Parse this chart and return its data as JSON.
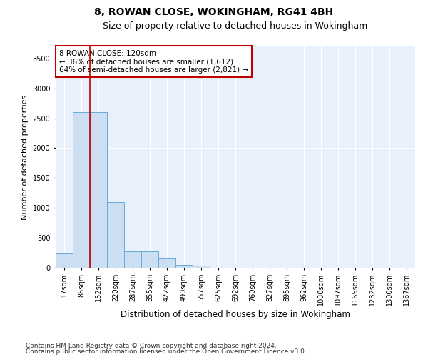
{
  "title1": "8, ROWAN CLOSE, WOKINGHAM, RG41 4BH",
  "title2": "Size of property relative to detached houses in Wokingham",
  "xlabel": "Distribution of detached houses by size in Wokingham",
  "ylabel": "Number of detached properties",
  "categories": [
    "17sqm",
    "85sqm",
    "152sqm",
    "220sqm",
    "287sqm",
    "355sqm",
    "422sqm",
    "490sqm",
    "557sqm",
    "625sqm",
    "692sqm",
    "760sqm",
    "827sqm",
    "895sqm",
    "962sqm",
    "1030sqm",
    "1097sqm",
    "1165sqm",
    "1232sqm",
    "1300sqm",
    "1367sqm"
  ],
  "values": [
    240,
    2600,
    2600,
    1100,
    270,
    270,
    150,
    50,
    30,
    0,
    0,
    0,
    0,
    0,
    0,
    0,
    0,
    0,
    0,
    0,
    0
  ],
  "bar_color": "#ccdff2",
  "bar_edge_color": "#6aabd4",
  "vline_x": 1.5,
  "vline_color": "#c00000",
  "annotation_text": "8 ROWAN CLOSE: 120sqm\n← 36% of detached houses are smaller (1,612)\n64% of semi-detached houses are larger (2,821) →",
  "annotation_box_color": "#ffffff",
  "annotation_box_edge_color": "#c00000",
  "ylim": [
    0,
    3700
  ],
  "yticks": [
    0,
    500,
    1000,
    1500,
    2000,
    2500,
    3000,
    3500
  ],
  "footer1": "Contains HM Land Registry data © Crown copyright and database right 2024.",
  "footer2": "Contains public sector information licensed under the Open Government Licence v3.0.",
  "plot_background": "#e8f0fb",
  "grid_color": "#ffffff",
  "title1_fontsize": 10,
  "title2_fontsize": 9,
  "tick_fontsize": 7,
  "ylabel_fontsize": 8,
  "xlabel_fontsize": 8.5,
  "footer_fontsize": 6.5,
  "annot_fontsize": 7.5
}
